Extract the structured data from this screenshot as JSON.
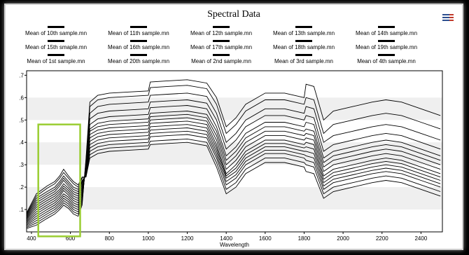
{
  "chart_data": {
    "type": "line",
    "title": "Spectral Data",
    "xlabel": "Wavelength",
    "ylabel": "",
    "xlim": [
      375,
      2510
    ],
    "ylim": [
      0.0,
      0.72
    ],
    "x_ticks": [
      400,
      600,
      800,
      1000,
      1200,
      1400,
      1600,
      1800,
      2000,
      2200,
      2400
    ],
    "y_ticks": [
      0.1,
      0.2,
      0.3,
      0.4,
      0.5,
      0.6,
      0.7
    ],
    "y_tick_labels": [
      ".1",
      ".2",
      ".3",
      ".4",
      ".5",
      ".6",
      ".7"
    ],
    "x": [
      375,
      425,
      480,
      520,
      545,
      565,
      590,
      615,
      640,
      660,
      680,
      700,
      740,
      800,
      900,
      1000,
      1010,
      1100,
      1200,
      1300,
      1350,
      1400,
      1450,
      1500,
      1600,
      1700,
      1800,
      1810,
      1850,
      1900,
      1950,
      2050,
      2150,
      2220,
      2300,
      2400,
      2500
    ],
    "series": [
      {
        "name": "Mean of 10th sample.mn",
        "values": [
          0.015,
          0.03,
          0.06,
          0.08,
          0.1,
          0.12,
          0.105,
          0.08,
          0.07,
          0.12,
          0.33,
          0.58,
          0.61,
          0.62,
          0.625,
          0.63,
          0.67,
          0.675,
          0.68,
          0.665,
          0.6,
          0.47,
          0.51,
          0.57,
          0.62,
          0.62,
          0.6,
          0.66,
          0.65,
          0.5,
          0.54,
          0.56,
          0.58,
          0.59,
          0.58,
          0.55,
          0.52
        ]
      },
      {
        "name": "Mean of 11th sample.mn",
        "values": [
          0.02,
          0.04,
          0.07,
          0.09,
          0.11,
          0.13,
          0.115,
          0.09,
          0.08,
          0.13,
          0.32,
          0.56,
          0.59,
          0.6,
          0.605,
          0.61,
          0.645,
          0.65,
          0.655,
          0.64,
          0.57,
          0.44,
          0.48,
          0.54,
          0.59,
          0.59,
          0.57,
          0.6,
          0.59,
          0.44,
          0.48,
          0.5,
          0.52,
          0.53,
          0.52,
          0.49,
          0.46
        ]
      },
      {
        "name": "Mean of 12th sample.mn",
        "values": [
          0.025,
          0.05,
          0.08,
          0.1,
          0.12,
          0.14,
          0.125,
          0.1,
          0.09,
          0.14,
          0.31,
          0.53,
          0.56,
          0.57,
          0.575,
          0.58,
          0.61,
          0.615,
          0.62,
          0.605,
          0.53,
          0.4,
          0.44,
          0.5,
          0.55,
          0.55,
          0.53,
          0.56,
          0.55,
          0.4,
          0.43,
          0.45,
          0.47,
          0.48,
          0.47,
          0.44,
          0.41
        ]
      },
      {
        "name": "Mean of 13th sample.mn",
        "values": [
          0.03,
          0.06,
          0.09,
          0.11,
          0.13,
          0.15,
          0.135,
          0.11,
          0.1,
          0.15,
          0.3,
          0.505,
          0.53,
          0.54,
          0.545,
          0.55,
          0.58,
          0.585,
          0.59,
          0.575,
          0.5,
          0.37,
          0.41,
          0.47,
          0.52,
          0.52,
          0.5,
          0.52,
          0.51,
          0.36,
          0.39,
          0.41,
          0.43,
          0.44,
          0.43,
          0.4,
          0.37
        ]
      },
      {
        "name": "Mean of 14th sample.mn",
        "values": [
          0.035,
          0.07,
          0.1,
          0.12,
          0.14,
          0.16,
          0.145,
          0.12,
          0.11,
          0.16,
          0.29,
          0.48,
          0.505,
          0.515,
          0.52,
          0.525,
          0.555,
          0.56,
          0.565,
          0.55,
          0.47,
          0.34,
          0.38,
          0.44,
          0.49,
          0.49,
          0.47,
          0.49,
          0.48,
          0.33,
          0.36,
          0.38,
          0.4,
          0.41,
          0.4,
          0.37,
          0.34
        ]
      },
      {
        "name": "Mean of 15th smaple.mn",
        "values": [
          0.04,
          0.08,
          0.11,
          0.13,
          0.15,
          0.17,
          0.155,
          0.13,
          0.12,
          0.17,
          0.285,
          0.46,
          0.485,
          0.495,
          0.5,
          0.505,
          0.53,
          0.535,
          0.54,
          0.525,
          0.45,
          0.32,
          0.36,
          0.42,
          0.47,
          0.47,
          0.45,
          0.46,
          0.45,
          0.31,
          0.34,
          0.36,
          0.38,
          0.39,
          0.38,
          0.35,
          0.32
        ]
      },
      {
        "name": "Mean of 16th sample.mn",
        "values": [
          0.045,
          0.09,
          0.12,
          0.14,
          0.16,
          0.185,
          0.165,
          0.14,
          0.13,
          0.18,
          0.28,
          0.45,
          0.47,
          0.48,
          0.485,
          0.49,
          0.515,
          0.52,
          0.525,
          0.51,
          0.43,
          0.3,
          0.34,
          0.4,
          0.45,
          0.45,
          0.43,
          0.44,
          0.43,
          0.29,
          0.32,
          0.34,
          0.36,
          0.37,
          0.36,
          0.33,
          0.3
        ]
      },
      {
        "name": "Mean of 17th sample.mn",
        "values": [
          0.05,
          0.1,
          0.13,
          0.15,
          0.17,
          0.195,
          0.175,
          0.15,
          0.14,
          0.19,
          0.275,
          0.435,
          0.455,
          0.465,
          0.47,
          0.475,
          0.5,
          0.505,
          0.51,
          0.495,
          0.41,
          0.28,
          0.32,
          0.38,
          0.43,
          0.43,
          0.41,
          0.42,
          0.41,
          0.27,
          0.3,
          0.32,
          0.34,
          0.35,
          0.34,
          0.31,
          0.28
        ]
      },
      {
        "name": "Mean of 18th sample.mn",
        "values": [
          0.055,
          0.11,
          0.14,
          0.16,
          0.18,
          0.205,
          0.185,
          0.16,
          0.15,
          0.2,
          0.27,
          0.42,
          0.44,
          0.45,
          0.455,
          0.46,
          0.485,
          0.49,
          0.495,
          0.48,
          0.39,
          0.26,
          0.3,
          0.36,
          0.41,
          0.41,
          0.39,
          0.4,
          0.39,
          0.25,
          0.28,
          0.3,
          0.32,
          0.33,
          0.32,
          0.29,
          0.26
        ]
      },
      {
        "name": "Mean of 19th sample.mn",
        "values": [
          0.06,
          0.12,
          0.15,
          0.17,
          0.19,
          0.215,
          0.195,
          0.17,
          0.16,
          0.21,
          0.265,
          0.405,
          0.425,
          0.435,
          0.44,
          0.445,
          0.47,
          0.475,
          0.48,
          0.465,
          0.375,
          0.25,
          0.285,
          0.345,
          0.395,
          0.395,
          0.375,
          0.38,
          0.37,
          0.235,
          0.265,
          0.285,
          0.305,
          0.315,
          0.305,
          0.275,
          0.245
        ]
      },
      {
        "name": "Mean of 1st sample.mn",
        "values": [
          0.065,
          0.13,
          0.16,
          0.18,
          0.205,
          0.23,
          0.205,
          0.18,
          0.17,
          0.22,
          0.26,
          0.39,
          0.41,
          0.42,
          0.425,
          0.43,
          0.455,
          0.46,
          0.465,
          0.45,
          0.36,
          0.24,
          0.27,
          0.33,
          0.38,
          0.38,
          0.36,
          0.36,
          0.35,
          0.22,
          0.25,
          0.27,
          0.29,
          0.3,
          0.29,
          0.26,
          0.23
        ]
      },
      {
        "name": "Mean of 20th sample.mn",
        "values": [
          0.07,
          0.14,
          0.17,
          0.19,
          0.215,
          0.24,
          0.215,
          0.19,
          0.18,
          0.225,
          0.255,
          0.375,
          0.395,
          0.405,
          0.41,
          0.415,
          0.44,
          0.445,
          0.45,
          0.435,
          0.345,
          0.225,
          0.255,
          0.315,
          0.365,
          0.365,
          0.345,
          0.34,
          0.33,
          0.205,
          0.235,
          0.255,
          0.275,
          0.285,
          0.275,
          0.245,
          0.215
        ]
      },
      {
        "name": "Mean of 2nd sample.mn",
        "values": [
          0.075,
          0.15,
          0.18,
          0.2,
          0.225,
          0.25,
          0.225,
          0.2,
          0.19,
          0.23,
          0.25,
          0.36,
          0.38,
          0.39,
          0.395,
          0.4,
          0.425,
          0.43,
          0.435,
          0.42,
          0.33,
          0.21,
          0.24,
          0.3,
          0.35,
          0.35,
          0.33,
          0.32,
          0.31,
          0.19,
          0.22,
          0.24,
          0.26,
          0.27,
          0.26,
          0.23,
          0.2
        ]
      },
      {
        "name": "Mean of 3rd sample.mn",
        "values": [
          0.08,
          0.16,
          0.195,
          0.215,
          0.24,
          0.265,
          0.24,
          0.215,
          0.2,
          0.24,
          0.25,
          0.345,
          0.365,
          0.375,
          0.38,
          0.385,
          0.405,
          0.41,
          0.415,
          0.4,
          0.31,
          0.19,
          0.22,
          0.28,
          0.33,
          0.33,
          0.31,
          0.3,
          0.29,
          0.17,
          0.2,
          0.22,
          0.24,
          0.25,
          0.24,
          0.21,
          0.18
        ]
      },
      {
        "name": "Mean of 4th sample.mn",
        "values": [
          0.085,
          0.17,
          0.205,
          0.225,
          0.25,
          0.28,
          0.25,
          0.225,
          0.21,
          0.245,
          0.245,
          0.33,
          0.35,
          0.36,
          0.365,
          0.37,
          0.39,
          0.395,
          0.4,
          0.385,
          0.29,
          0.17,
          0.2,
          0.26,
          0.31,
          0.31,
          0.29,
          0.27,
          0.26,
          0.15,
          0.18,
          0.2,
          0.22,
          0.23,
          0.22,
          0.19,
          0.16
        ]
      }
    ],
    "highlight_box": {
      "x": [
        435,
        650
      ],
      "y": [
        -0.02,
        0.48
      ],
      "color": "#9acd32"
    },
    "grid": "horizontal bands",
    "legend_position": "top"
  }
}
